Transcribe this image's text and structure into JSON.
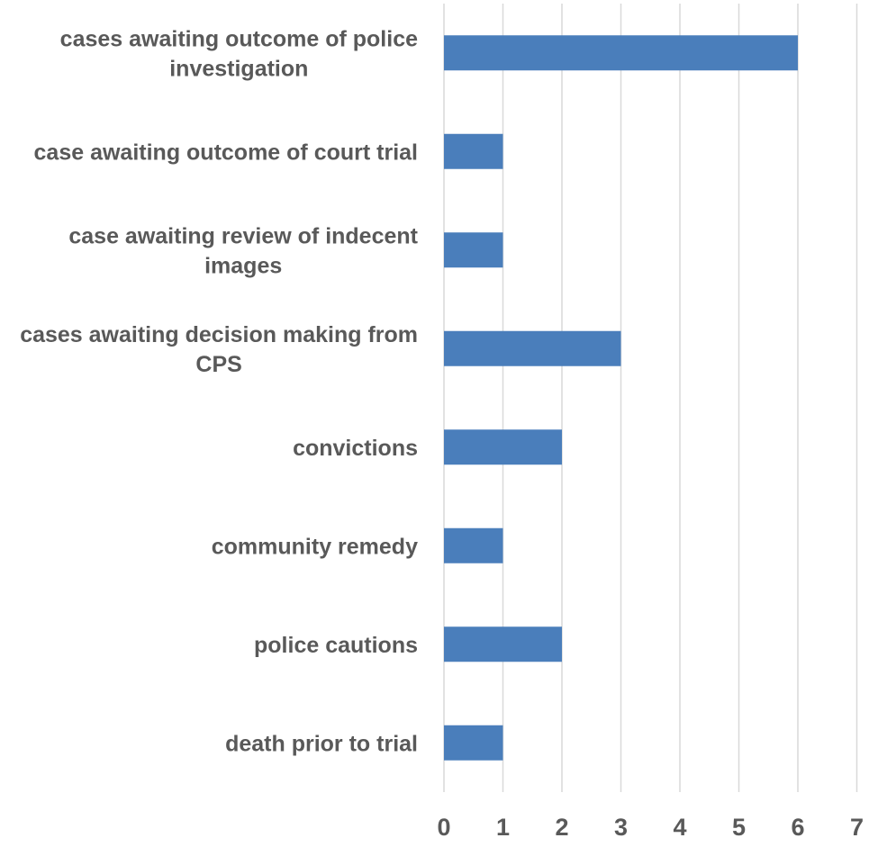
{
  "chart_data": {
    "type": "bar",
    "orientation": "horizontal",
    "categories": [
      [
        "cases awaiting outcome of police",
        "investigation"
      ],
      [
        "case awaiting outcome of court trial"
      ],
      [
        "case awaiting review of indecent",
        "images"
      ],
      [
        "cases awaiting decision making from",
        "CPS"
      ],
      [
        "convictions"
      ],
      [
        "community remedy"
      ],
      [
        "police cautions"
      ],
      [
        "death prior to trial"
      ]
    ],
    "values": [
      6,
      1,
      1,
      3,
      2,
      1,
      2,
      1
    ],
    "xlim": [
      0,
      7
    ],
    "xticks": [
      "0",
      "1",
      "2",
      "3",
      "4",
      "5",
      "6",
      "7"
    ],
    "grid": true,
    "legend": "none",
    "title": "",
    "xlabel": "",
    "ylabel": "",
    "bar_color": "#4a7ebb",
    "grid_color": "#d9d9d9",
    "text_color": "#595959"
  }
}
